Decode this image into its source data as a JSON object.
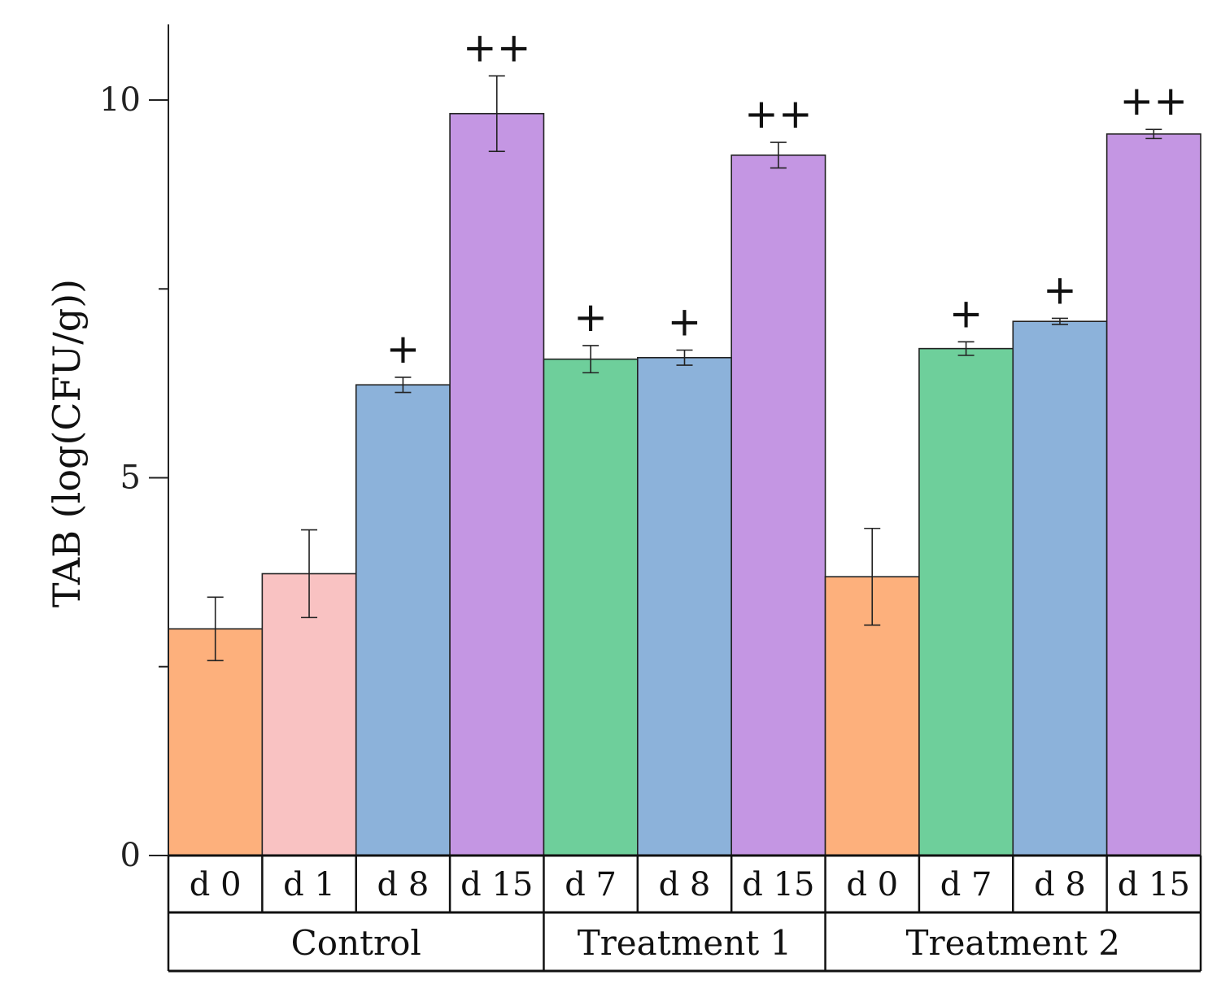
{
  "chart_data": {
    "type": "bar",
    "title": "",
    "xlabel": "",
    "ylabel": "TAB (log(CFU/g))",
    "ylim": [
      0,
      10.5
    ],
    "yticks": [
      0,
      5,
      10
    ],
    "grid": false,
    "bars": [
      {
        "group": "Control",
        "label": "d 0",
        "value": 3.0,
        "error": 0.42,
        "color": "#FDB07C",
        "sig": ""
      },
      {
        "group": "Control",
        "label": "d 1",
        "value": 3.73,
        "error": 0.58,
        "color": "#F9C2C2",
        "sig": ""
      },
      {
        "group": "Control",
        "label": "d 8",
        "value": 6.23,
        "error": 0.1,
        "color": "#8CB2DA",
        "sig": "+"
      },
      {
        "group": "Control",
        "label": "d 15",
        "value": 9.82,
        "error": 0.5,
        "color": "#C496E3",
        "sig": "++"
      },
      {
        "group": "Treatment 1",
        "label": "d 7",
        "value": 6.57,
        "error": 0.18,
        "color": "#6ECF9B",
        "sig": "+"
      },
      {
        "group": "Treatment 1",
        "label": "d 8",
        "value": 6.59,
        "error": 0.1,
        "color": "#8CB2DA",
        "sig": "+"
      },
      {
        "group": "Treatment 1",
        "label": "d 15",
        "value": 9.27,
        "error": 0.17,
        "color": "#C496E3",
        "sig": "++"
      },
      {
        "group": "Treatment 2",
        "label": "d 0",
        "value": 3.69,
        "error": 0.64,
        "color": "#FDB07C",
        "sig": ""
      },
      {
        "group": "Treatment 2",
        "label": "d 7",
        "value": 6.71,
        "error": 0.09,
        "color": "#6ECF9B",
        "sig": "+"
      },
      {
        "group": "Treatment 2",
        "label": "d 8",
        "value": 7.07,
        "error": 0.04,
        "color": "#8CB2DA",
        "sig": "+"
      },
      {
        "group": "Treatment 2",
        "label": "d 15",
        "value": 9.55,
        "error": 0.06,
        "color": "#C496E3",
        "sig": "++"
      }
    ],
    "groups": [
      {
        "name": "Control",
        "count": 4
      },
      {
        "name": "Treatment 1",
        "count": 3
      },
      {
        "name": "Treatment 2",
        "count": 4
      }
    ]
  }
}
